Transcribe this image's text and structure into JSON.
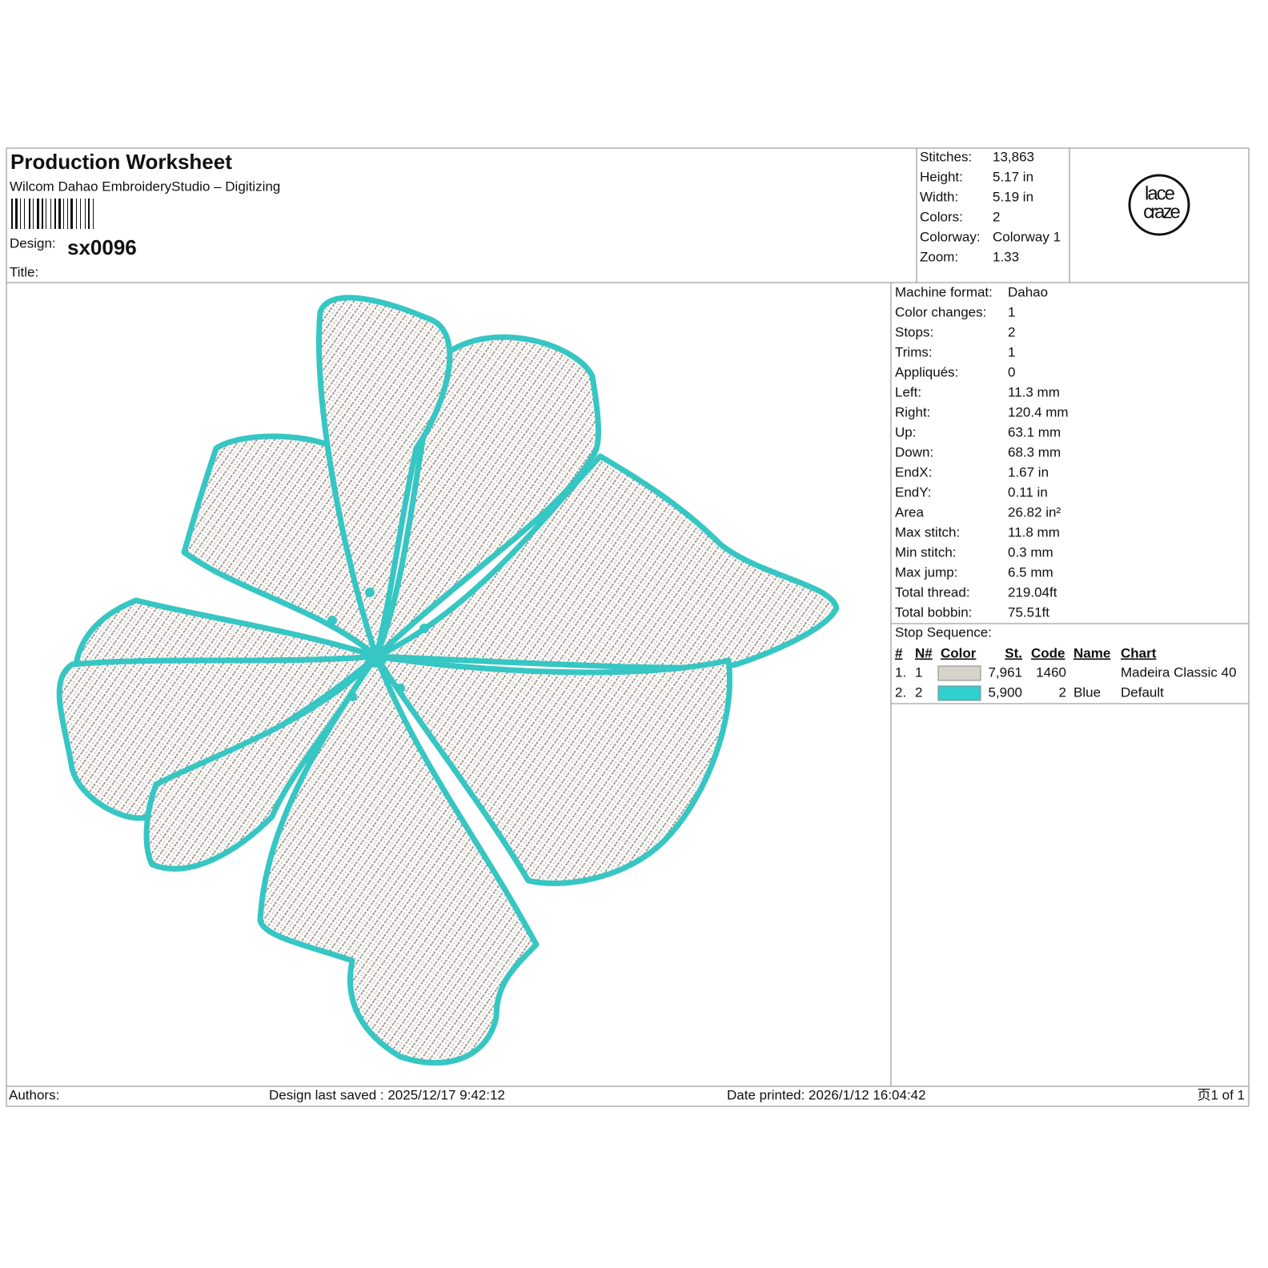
{
  "header": {
    "title": "Production Worksheet",
    "subtitle": "Wilcom Dahao EmbroideryStudio – Digitizing",
    "design_label": "Design:",
    "design": "sx0096",
    "title_label": "Title:"
  },
  "summary": [
    [
      "Stitches:",
      "13,863"
    ],
    [
      "Height:",
      "5.17 in"
    ],
    [
      "Width:",
      "5.19 in"
    ],
    [
      "Colors:",
      "2"
    ],
    [
      "Colorway:",
      "Colorway 1"
    ],
    [
      "Zoom:",
      "1.33"
    ]
  ],
  "logo": [
    "lace",
    "craze"
  ],
  "details": [
    [
      "Machine format:",
      "Dahao"
    ],
    [
      "Color changes:",
      "1"
    ],
    [
      "Stops:",
      "2"
    ],
    [
      "Trims:",
      "1"
    ],
    [
      "Appliqués:",
      "0"
    ],
    [
      "Left:",
      "11.3 mm"
    ],
    [
      "Right:",
      "120.4 mm"
    ],
    [
      "Up:",
      "63.1 mm"
    ],
    [
      "Down:",
      "68.3 mm"
    ],
    [
      "EndX:",
      "1.67 in"
    ],
    [
      "EndY:",
      "0.11 in"
    ],
    [
      "Area",
      "26.82 in²"
    ],
    [
      "Max stitch:",
      "11.8 mm"
    ],
    [
      "Min stitch:",
      "0.3 mm"
    ],
    [
      "Max jump:",
      "6.5 mm"
    ],
    [
      "Total thread:",
      "219.04ft"
    ],
    [
      "Total bobbin:",
      "75.51ft"
    ]
  ],
  "stop_sequence": {
    "title": "Stop Sequence:",
    "columns": [
      "#",
      "N#",
      "Color",
      "St.",
      "Code",
      "Name",
      "Chart"
    ],
    "rows": [
      {
        "index": "1.",
        "n": "1",
        "color": "#d6d3cb",
        "stitches": "7,961",
        "code": "1460",
        "chart": "Madeira Classic 40"
      },
      {
        "index": "2.",
        "n": "2",
        "color": "#2ecfcf",
        "stitches": "5,900",
        "code": "2",
        "name": "Blue",
        "chart": "Default"
      }
    ]
  },
  "footer": {
    "authors": "Authors:",
    "saved": "Design last saved : 2025/12/17 9:42:12",
    "printed": "Date printed: 2026/1/12 16:04:42",
    "page": "页1 of 1"
  }
}
